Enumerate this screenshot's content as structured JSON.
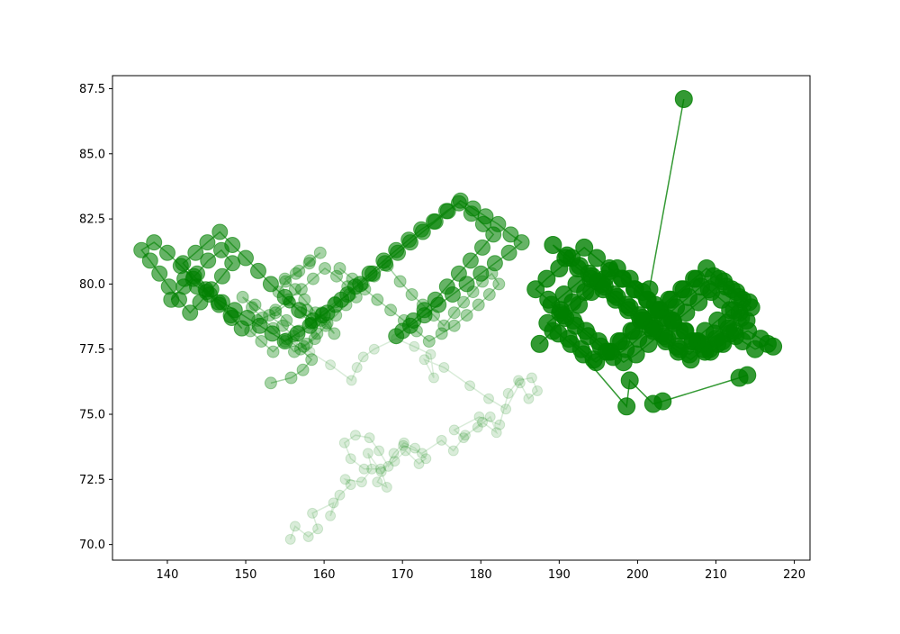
{
  "chart_data": {
    "type": "scatter",
    "title": "",
    "xlabel": "",
    "ylabel": "",
    "xlim": [
      133,
      222
    ],
    "ylim": [
      69.4,
      88.0
    ],
    "x_ticks": [
      140,
      150,
      160,
      170,
      180,
      190,
      200,
      210,
      220
    ],
    "y_ticks": [
      70.0,
      72.5,
      75.0,
      77.5,
      80.0,
      82.5,
      85.0,
      87.5
    ],
    "x_tick_labels": [
      "140",
      "150",
      "160",
      "170",
      "180",
      "190",
      "200",
      "210",
      "220"
    ],
    "y_tick_labels": [
      "70.0",
      "72.5",
      "75.0",
      "77.5",
      "80.0",
      "82.5",
      "85.0",
      "87.5"
    ],
    "grid": false,
    "legend": "none",
    "color": "#008000",
    "series": [
      {
        "style": "lines+markers, faint",
        "x": [
          155.7,
          156.3,
          158.0,
          159.2,
          158.5,
          161.2,
          160.8,
          162.0,
          163.4,
          162.7,
          164.8,
          166.1,
          165.6,
          167.3,
          168.0,
          166.8,
          168.9,
          170.2,
          171.6,
          173.0,
          172.1,
          170.4,
          169.0,
          167.2,
          165.1,
          163.4,
          162.6,
          164.0,
          165.8,
          167.0,
          168.2,
          170.1,
          172.5,
          175.0,
          176.5,
          178.0,
          179.6,
          181.2,
          182.0,
          180.2,
          177.8,
          176.6,
          179.8,
          182.4,
          183.5,
          184.8,
          186.5,
          187.2,
          186.1,
          185.0,
          183.2,
          181.0,
          178.6,
          175.3,
          172.8,
          174.0,
          173.6,
          171.5,
          169.2,
          166.4,
          165.0,
          164.2,
          163.5,
          160.8,
          158.2,
          156.0
        ],
        "y": [
          70.2,
          70.7,
          70.3,
          70.6,
          71.2,
          71.6,
          71.1,
          71.9,
          72.3,
          72.5,
          72.4,
          72.9,
          73.5,
          72.8,
          72.2,
          72.4,
          73.5,
          73.9,
          73.7,
          73.3,
          73.1,
          73.6,
          73.2,
          72.9,
          72.9,
          73.3,
          73.9,
          74.2,
          74.1,
          73.6,
          73.0,
          73.8,
          73.5,
          74.0,
          73.6,
          74.2,
          74.5,
          74.9,
          74.3,
          74.7,
          74.1,
          74.4,
          74.9,
          74.6,
          75.8,
          76.3,
          76.4,
          75.9,
          75.6,
          76.2,
          75.2,
          75.6,
          76.1,
          76.8,
          77.1,
          76.4,
          77.3,
          77.6,
          77.9,
          77.5,
          77.2,
          76.8,
          76.3,
          76.9,
          77.4,
          77.8
        ],
        "marker_radius": 5.5,
        "opacity": 0.15
      },
      {
        "style": "lines+markers, medium",
        "x": [
          153.2,
          155.8,
          157.3,
          158.4,
          157.0,
          155.2,
          153.5,
          152.0,
          150.6,
          151.5,
          153.8,
          155.6,
          157.8,
          159.6,
          161.3,
          160.4,
          158.9,
          157.5,
          156.3,
          155.0,
          156.8,
          158.2,
          159.5,
          158.1,
          156.4,
          155.1,
          154.2,
          155.6,
          157.0,
          158.3,
          159.1,
          157.8,
          156.2,
          155.0,
          153.5,
          152.1,
          150.8,
          149.6,
          151.2,
          153.0,
          154.7,
          156.1,
          157.4,
          158.8,
          160.2,
          161.5,
          162.8,
          164.1,
          163.0,
          161.6,
          160.1,
          158.6,
          157.1,
          155.4,
          153.8,
          155.2,
          156.8,
          158.3,
          159.7,
          161.4,
          163.2,
          165.0,
          166.4,
          168.1,
          169.7,
          171.2,
          172.6,
          174.0,
          175.3,
          176.6,
          177.8,
          179.0,
          180.2,
          181.4,
          182.3,
          181.1,
          179.7,
          178.2,
          176.6,
          175.0,
          173.4,
          171.8,
          170.2,
          168.5,
          166.8,
          165.2,
          163.6,
          162.0
        ],
        "y": [
          76.2,
          76.4,
          76.7,
          77.1,
          77.5,
          77.9,
          77.4,
          77.8,
          78.2,
          78.6,
          78.9,
          79.3,
          79.0,
          78.6,
          78.1,
          78.5,
          78.9,
          79.4,
          79.8,
          80.2,
          80.5,
          80.9,
          81.2,
          80.8,
          80.4,
          80.1,
          79.7,
          79.3,
          78.9,
          78.5,
          78.1,
          77.7,
          77.4,
          77.8,
          78.3,
          78.7,
          79.1,
          79.5,
          79.2,
          78.8,
          78.4,
          78.0,
          77.6,
          77.9,
          78.4,
          78.8,
          79.2,
          79.5,
          79.9,
          80.3,
          80.6,
          80.2,
          79.8,
          79.4,
          79.0,
          78.6,
          78.2,
          78.5,
          78.9,
          79.3,
          79.6,
          80.0,
          80.3,
          80.7,
          80.1,
          79.6,
          79.2,
          78.8,
          78.4,
          78.9,
          79.3,
          79.7,
          80.1,
          80.4,
          80.0,
          79.6,
          79.2,
          78.8,
          78.4,
          78.1,
          77.8,
          78.2,
          78.6,
          79.0,
          79.4,
          79.8,
          80.2,
          80.6
        ],
        "marker_radius": 6.5,
        "opacity": 0.35
      },
      {
        "style": "lines+markers, strong",
        "x": [
          140.5,
          142.1,
          143.8,
          145.2,
          146.9,
          148.3,
          147.0,
          145.6,
          144.2,
          142.9,
          141.5,
          140.2,
          139.0,
          137.8,
          136.7,
          138.3,
          140.0,
          141.7,
          143.3,
          145.0,
          146.6,
          148.2,
          149.5,
          148.1,
          146.5,
          144.9,
          143.4,
          142.0,
          143.6,
          145.1,
          146.7,
          148.3,
          150.0,
          151.6,
          153.2,
          155.0,
          156.8,
          158.6,
          160.4,
          162.2,
          164.0,
          165.8,
          167.6,
          169.2,
          170.8,
          172.4,
          174.0,
          175.6,
          177.2,
          178.8,
          180.3,
          181.6,
          180.2,
          178.7,
          177.2,
          175.7,
          174.2,
          172.8,
          171.4,
          170.0,
          169.2,
          171.0,
          172.8,
          174.6,
          176.4,
          178.2,
          180.0,
          181.8,
          183.6,
          185.2,
          183.8,
          182.2,
          180.6,
          179.0,
          177.4,
          175.8,
          174.2,
          172.6,
          171.0,
          169.4,
          167.8,
          166.2,
          164.6,
          163.0,
          161.4,
          159.8,
          158.2,
          156.6,
          155.0,
          153.4,
          151.8,
          150.2,
          148.6,
          147.0,
          145.4,
          143.8,
          142.2
        ],
        "y": [
          79.4,
          79.9,
          80.4,
          80.9,
          81.3,
          80.8,
          80.3,
          79.8,
          79.3,
          78.9,
          79.4,
          79.9,
          80.4,
          80.9,
          81.3,
          81.6,
          81.2,
          80.7,
          80.2,
          79.7,
          79.2,
          78.7,
          78.3,
          78.8,
          79.3,
          79.8,
          80.3,
          80.8,
          81.2,
          81.6,
          82.0,
          81.5,
          81.0,
          80.5,
          80.0,
          79.5,
          79.0,
          78.6,
          78.9,
          79.4,
          79.9,
          80.4,
          80.9,
          81.3,
          81.7,
          82.1,
          82.4,
          82.8,
          83.1,
          82.7,
          82.3,
          81.9,
          81.4,
          80.9,
          80.4,
          79.9,
          79.4,
          79.0,
          78.6,
          78.2,
          78.0,
          78.4,
          78.8,
          79.2,
          79.6,
          80.0,
          80.4,
          80.8,
          81.2,
          81.6,
          81.9,
          82.3,
          82.6,
          82.9,
          83.2,
          82.8,
          82.4,
          82.0,
          81.6,
          81.2,
          80.8,
          80.4,
          80.0,
          79.6,
          79.2,
          78.8,
          78.4,
          78.1,
          77.8,
          78.1,
          78.4,
          78.7,
          79.0,
          79.3,
          79.6,
          79.9,
          80.2
        ],
        "marker_radius": 8.5,
        "opacity": 0.6
      },
      {
        "style": "lines+markers, dense",
        "x": [
          187.5,
          189.2,
          190.8,
          192.5,
          194.1,
          195.8,
          197.4,
          199.0,
          200.6,
          202.2,
          203.8,
          205.4,
          207.0,
          208.6,
          210.2,
          211.8,
          213.4,
          215.0,
          216.6,
          217.3,
          215.7,
          214.1,
          212.5,
          210.9,
          209.3,
          207.7,
          206.1,
          204.5,
          202.9,
          201.3,
          199.7,
          198.1,
          196.5,
          194.9,
          193.3,
          191.7,
          190.1,
          188.5,
          189.9,
          191.5,
          193.1,
          194.7,
          196.3,
          197.9,
          199.5,
          201.1,
          202.7,
          204.3,
          205.9,
          207.5,
          209.1,
          210.7,
          212.3,
          213.9,
          212.4,
          210.8,
          209.2,
          207.6,
          206.0,
          204.4,
          202.8,
          201.2,
          199.6,
          198.0,
          196.4,
          194.8,
          193.2,
          191.6,
          190.0,
          188.4,
          187.0,
          188.6,
          190.2,
          191.8,
          193.4,
          195.0,
          196.6,
          198.2,
          199.8,
          201.4,
          203.0,
          204.6,
          206.2,
          207.8,
          209.4,
          211.0,
          212.6,
          214.2,
          213.0,
          211.4,
          209.8,
          208.2,
          206.6,
          205.0,
          203.4,
          201.8,
          200.2,
          198.6,
          197.0,
          195.4,
          193.8,
          192.2,
          190.6,
          189.0,
          190.5,
          192.1,
          193.7,
          195.3,
          196.9,
          198.5,
          200.1,
          201.7,
          203.3,
          204.9,
          206.5,
          208.1,
          209.7,
          211.3,
          212.9,
          214.5,
          213.2,
          211.6,
          210.0,
          208.4,
          206.8,
          205.2,
          203.6,
          202.0,
          200.4,
          198.8,
          197.2,
          195.6,
          194.0,
          192.4,
          190.8,
          189.2,
          191.0,
          192.6,
          194.2,
          195.8,
          197.4,
          199.0,
          200.6,
          202.2,
          203.8,
          205.4,
          207.0,
          208.6,
          210.2,
          211.8,
          213.4,
          212.0,
          210.4,
          208.8,
          207.2,
          205.6,
          204.0,
          202.4,
          200.8,
          199.2,
          197.6,
          196.0,
          194.4,
          192.8,
          191.2,
          198.6,
          199.0,
          202.0,
          203.2,
          213.0,
          214.0
        ],
        "y": [
          77.7,
          78.2,
          78.7,
          79.2,
          79.7,
          80.2,
          80.6,
          80.2,
          79.7,
          79.2,
          78.7,
          78.2,
          77.8,
          77.4,
          77.7,
          78.1,
          77.8,
          77.5,
          77.7,
          77.6,
          77.9,
          78.2,
          78.0,
          77.7,
          77.4,
          77.8,
          78.2,
          78.6,
          79.0,
          79.4,
          79.8,
          80.2,
          80.5,
          80.1,
          79.7,
          79.3,
          78.9,
          78.5,
          78.1,
          77.7,
          77.3,
          77.0,
          77.4,
          77.8,
          78.2,
          78.6,
          79.0,
          79.4,
          79.8,
          80.2,
          79.8,
          79.4,
          79.0,
          78.6,
          78.2,
          77.8,
          77.5,
          77.8,
          78.2,
          78.6,
          79.0,
          79.4,
          79.8,
          80.2,
          80.6,
          81.0,
          81.4,
          81.0,
          80.6,
          80.2,
          79.8,
          79.4,
          79.0,
          78.6,
          78.2,
          77.8,
          77.4,
          77.0,
          77.3,
          77.7,
          78.1,
          78.5,
          78.9,
          79.3,
          79.7,
          80.1,
          79.7,
          79.3,
          78.9,
          78.5,
          78.1,
          77.7,
          77.3,
          77.6,
          78.0,
          78.4,
          78.8,
          79.2,
          79.6,
          80.0,
          80.4,
          80.0,
          79.6,
          79.2,
          78.8,
          78.4,
          78.0,
          77.6,
          77.2,
          77.5,
          77.9,
          78.3,
          78.7,
          79.1,
          79.5,
          79.9,
          80.3,
          79.9,
          79.5,
          79.1,
          78.7,
          78.3,
          77.9,
          77.5,
          77.1,
          77.4,
          77.8,
          78.2,
          78.6,
          79.0,
          79.4,
          79.8,
          80.2,
          80.6,
          81.0,
          81.5,
          81.1,
          80.7,
          80.3,
          79.9,
          79.5,
          79.1,
          78.7,
          78.3,
          77.9,
          77.5,
          77.8,
          78.2,
          78.6,
          79.0,
          79.4,
          79.8,
          80.2,
          80.6,
          80.2,
          79.8,
          79.4,
          79.0,
          78.6,
          78.2,
          77.8,
          77.4,
          77.1,
          77.5,
          77.9,
          75.3,
          76.3,
          75.4,
          75.5,
          76.4,
          76.5
        ],
        "marker_radius": 9.5,
        "opacity": 0.8
      },
      {
        "style": "lines+markers, outlier",
        "x": [
          201.5,
          205.9
        ],
        "y": [
          79.8,
          87.1
        ],
        "marker_radius": 9.5,
        "opacity": 0.8
      }
    ]
  }
}
